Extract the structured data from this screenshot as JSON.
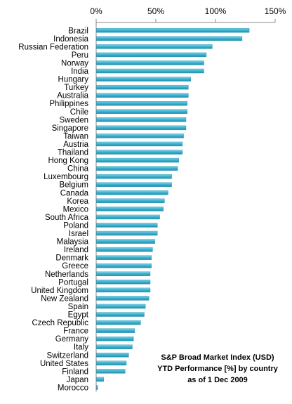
{
  "chart_data": {
    "type": "bar",
    "orientation": "horizontal",
    "title_lines": [
      "S&P Broad Market Index (USD)",
      "YTD Performance [%] by country",
      "as of 1 Dec 2009"
    ],
    "title_position": "bottom-right",
    "xlabel": "",
    "ylabel": "",
    "xlim": [
      0,
      150
    ],
    "x_ticks": [
      0,
      50,
      100,
      150
    ],
    "x_tick_labels": [
      "0%",
      "50%",
      "100%",
      "150%"
    ],
    "x_axis_position": "top",
    "grid": false,
    "legend": "none",
    "bar_color": "#4bacc6",
    "categories": [
      "Brazil",
      "Indonesia",
      "Russian Federation",
      "Peru",
      "Norway",
      "India",
      "Hungary",
      "Turkey",
      "Australia",
      "Philippines",
      "Chile",
      "Sweden",
      "Singapore",
      "Taiwan",
      "Austria",
      "Thailand",
      "Hong Kong",
      "China",
      "Luxembourg",
      "Belgium",
      "Canada",
      "Korea",
      "Mexico",
      "South Africa",
      "Poland",
      "Israel",
      "Malaysia",
      "Ireland",
      "Denmark",
      "Greece",
      "Netherlands",
      "Portugal",
      "United Kingdom",
      "New Zealand",
      "Spain",
      "Egypt",
      "Czech Republic",
      "France",
      "Germany",
      "Italy",
      "Switzerland",
      "United States",
      "Finland",
      "Japan",
      "Morocco"
    ],
    "values": [
      128,
      122,
      97,
      92,
      90,
      90,
      79,
      77,
      77,
      76,
      76,
      75,
      75,
      73,
      72,
      72,
      69,
      68,
      63,
      63,
      60,
      57,
      56,
      53,
      51,
      51,
      49,
      47,
      46,
      46,
      45,
      45,
      45,
      44,
      41,
      40,
      37,
      32,
      31,
      30,
      27,
      25,
      24,
      6,
      1
    ]
  }
}
